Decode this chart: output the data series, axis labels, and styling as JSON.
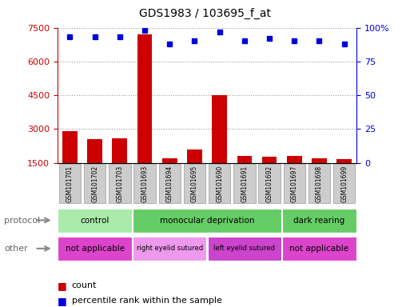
{
  "title": "GDS1983 / 103695_f_at",
  "samples": [
    "GSM101701",
    "GSM101702",
    "GSM101703",
    "GSM101693",
    "GSM101694",
    "GSM101695",
    "GSM101690",
    "GSM101691",
    "GSM101692",
    "GSM101697",
    "GSM101698",
    "GSM101699"
  ],
  "counts": [
    2900,
    2550,
    2600,
    7200,
    1700,
    2100,
    4500,
    1800,
    1750,
    1800,
    1700,
    1650
  ],
  "percentile_ranks": [
    93,
    93,
    93,
    98,
    88,
    90,
    97,
    90,
    92,
    90,
    90,
    88
  ],
  "bar_color": "#cc0000",
  "dot_color": "#0000dd",
  "ylim_left": [
    1500,
    7500
  ],
  "yticks_left": [
    1500,
    3000,
    4500,
    6000,
    7500
  ],
  "ylim_right": [
    0,
    100
  ],
  "yticks_right": [
    0,
    25,
    50,
    75,
    100
  ],
  "protocol_groups": [
    {
      "label": "control",
      "start": 0,
      "end": 3,
      "color": "#aaeaaa"
    },
    {
      "label": "monocular deprivation",
      "start": 3,
      "end": 9,
      "color": "#66cc66"
    },
    {
      "label": "dark rearing",
      "start": 9,
      "end": 12,
      "color": "#66cc66"
    }
  ],
  "other_groups": [
    {
      "label": "not applicable",
      "start": 0,
      "end": 3,
      "color": "#dd44cc"
    },
    {
      "label": "right eyelid sutured",
      "start": 3,
      "end": 6,
      "color": "#ee99ee"
    },
    {
      "label": "left eyelid sutured",
      "start": 6,
      "end": 9,
      "color": "#cc44cc"
    },
    {
      "label": "not applicable",
      "start": 9,
      "end": 12,
      "color": "#dd44cc"
    }
  ],
  "grid_color": "#999999",
  "bg_color": "#ffffff",
  "left_axis_color": "#cc0000",
  "right_axis_color": "#0000dd",
  "sample_box_color": "#cccccc",
  "sample_box_edge": "#999999"
}
